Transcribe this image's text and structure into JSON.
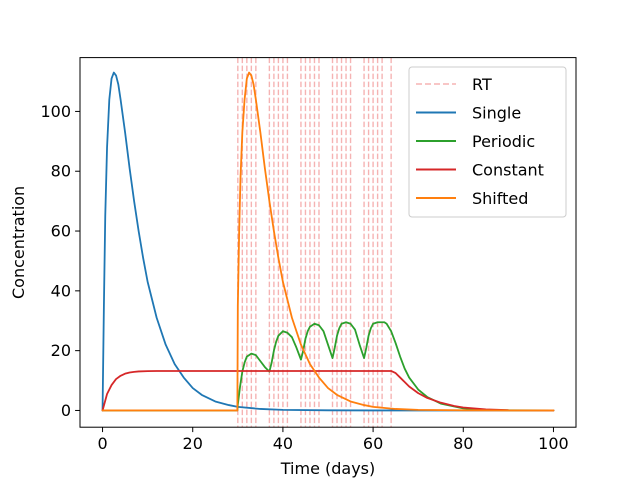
{
  "chart_data": {
    "type": "line",
    "xlabel": "Time (days)",
    "ylabel": "Concentration",
    "xlim": [
      -5,
      105
    ],
    "ylim": [
      -5.6,
      118
    ],
    "x_ticks": [
      0,
      20,
      40,
      60,
      80,
      100
    ],
    "y_ticks": [
      0,
      20,
      40,
      60,
      80,
      100
    ],
    "grid": false,
    "legend_position": "top-right",
    "rt_days": [
      30,
      31,
      32,
      33,
      34,
      37,
      38,
      39,
      40,
      41,
      44,
      45,
      46,
      47,
      48,
      51,
      52,
      53,
      54,
      55,
      58,
      59,
      60,
      61,
      62,
      64
    ],
    "series": [
      {
        "name": "RT",
        "style": "dashed",
        "color": "#f4a6a6",
        "values": []
      },
      {
        "name": "Single",
        "color": "#1f77b4",
        "x": [
          0,
          0.3,
          0.6,
          1,
          1.5,
          2,
          2.5,
          3,
          3.5,
          4,
          5,
          6,
          7,
          8,
          9,
          10,
          12,
          14,
          16,
          18,
          20,
          22,
          25,
          28,
          30,
          35,
          40,
          50,
          60,
          70,
          80,
          90,
          100
        ],
        "values": [
          0,
          35,
          65,
          88,
          104,
          111,
          113,
          112,
          109,
          104,
          93,
          81,
          70,
          60,
          51,
          43,
          31,
          22,
          15.5,
          11,
          7.5,
          5.2,
          3,
          1.8,
          1.2,
          0.5,
          0.2,
          0.05,
          0,
          0,
          0,
          0,
          0
        ]
      },
      {
        "name": "Periodic",
        "color": "#2ca02c",
        "x": [
          0,
          29.9,
          30,
          30.5,
          31,
          31.5,
          32,
          33,
          34,
          35,
          36,
          37,
          37.5,
          38,
          38.5,
          39,
          40,
          41,
          42,
          43,
          44,
          44.5,
          45,
          45.5,
          46,
          47,
          48,
          49,
          50,
          51,
          51.5,
          52,
          52.5,
          53,
          54,
          55,
          56,
          57,
          58,
          58.5,
          59,
          59.5,
          60,
          61,
          62,
          62.5,
          63,
          64,
          65,
          66,
          67,
          68,
          70,
          72,
          75,
          80,
          85,
          90,
          100
        ],
        "values": [
          0,
          0,
          2,
          8,
          13,
          16,
          18,
          19,
          18.5,
          16.5,
          14.5,
          13,
          16,
          20,
          23,
          25,
          26.5,
          26,
          24.5,
          21,
          17,
          20,
          24,
          26.5,
          28,
          29,
          28.5,
          26.5,
          22,
          17.5,
          21,
          25,
          27.5,
          29,
          29.5,
          29,
          27,
          22,
          17.5,
          21,
          25,
          27.5,
          29,
          29.5,
          29.5,
          29.5,
          29,
          26.5,
          22.5,
          18,
          14,
          11,
          7,
          4.5,
          2.3,
          0.7,
          0.2,
          0.05,
          0
        ]
      },
      {
        "name": "Constant",
        "color": "#d62728",
        "x": [
          0,
          1,
          2,
          3,
          4,
          5,
          6,
          7,
          8,
          10,
          12,
          15,
          20,
          30,
          40,
          50,
          60,
          63,
          64,
          65,
          66,
          67,
          68,
          70,
          72,
          75,
          78,
          80,
          85,
          90,
          100
        ],
        "values": [
          0,
          5.5,
          8.5,
          10.5,
          11.6,
          12.3,
          12.7,
          12.9,
          13.05,
          13.15,
          13.2,
          13.2,
          13.2,
          13.2,
          13.2,
          13.2,
          13.2,
          13.2,
          13.2,
          12.5,
          11,
          9.5,
          8,
          5.8,
          4.2,
          2.6,
          1.5,
          1,
          0.35,
          0.12,
          0
        ]
      },
      {
        "name": "Shifted",
        "color": "#ff7f0e",
        "x": [
          0,
          29.9,
          30,
          30.3,
          30.6,
          31,
          31.5,
          32,
          32.5,
          33,
          33.5,
          34,
          35,
          36,
          37,
          38,
          39,
          40,
          42,
          44,
          46,
          48,
          50,
          52,
          55,
          58,
          60,
          65,
          70,
          80,
          90,
          100
        ],
        "values": [
          0,
          0,
          35,
          60,
          78,
          93,
          104,
          111,
          113,
          112,
          109,
          104,
          93,
          81,
          70,
          60,
          51,
          43,
          31,
          22,
          15.5,
          11,
          7.5,
          5.2,
          3,
          1.8,
          1.2,
          0.5,
          0.2,
          0.05,
          0,
          0
        ]
      }
    ]
  }
}
